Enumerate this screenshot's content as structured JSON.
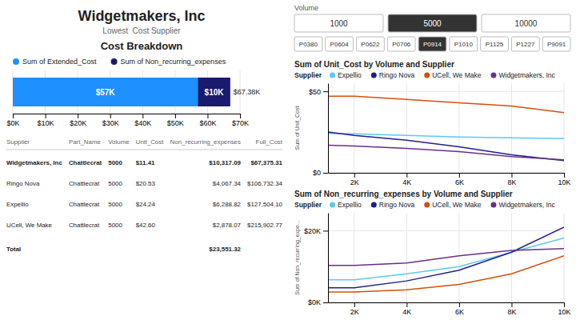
{
  "title": "Widgetmakers, Inc",
  "subtitle": "Lowest  Cost Supplier",
  "controls": [
    {
      "label": "Volume",
      "options": [
        "1000",
        "5000",
        "10000"
      ],
      "selected": "5000"
    },
    {
      "options": [
        "P0380",
        "P0604",
        "P0622",
        "P0706",
        "P0914",
        "P1010",
        "P1125",
        "P1227",
        "P9091"
      ],
      "selected": "P0914"
    }
  ],
  "chart_data": [
    {
      "type": "bar",
      "title": "Cost Breakdown",
      "orientation": "horizontal",
      "stacked": true,
      "data_labels": true,
      "grid": true,
      "series": [
        {
          "name": "Sum of Extended_Cost",
          "color": "#1E90FF",
          "values": [
            57000
          ],
          "value_labels": [
            "$57K"
          ]
        },
        {
          "name": "Sum of Non_recurring_expenses",
          "color": "#1a1a6e",
          "values": [
            10000
          ],
          "value_labels": [
            "$10K"
          ]
        }
      ],
      "annotations": [
        "$67.38K"
      ],
      "xlim": [
        0,
        70000
      ],
      "xticks": [
        {
          "value": 0,
          "label": "$0K"
        },
        {
          "value": 10000,
          "label": "$10K"
        },
        {
          "value": 20000,
          "label": "$20K"
        },
        {
          "value": 30000,
          "label": "$30K"
        },
        {
          "value": 40000,
          "label": "$40K"
        },
        {
          "value": 50000,
          "label": "$50K"
        },
        {
          "value": 60000,
          "label": "$60K"
        },
        {
          "value": 70000,
          "label": "$70K"
        }
      ]
    },
    {
      "type": "table",
      "columns": [
        "Supplier",
        "Part_Name",
        "Volume",
        "Unit_Cost",
        "Non_recurring_expenses",
        "Full_Cost"
      ],
      "rows": [
        [
          "Widgetmakers, Inc",
          "Chattlecrat",
          "5000",
          "$11.41",
          "$10,317.09",
          "$67,375.31"
        ],
        [
          "Ringo Nova",
          "Chattlecrat",
          "5000",
          "$20.53",
          "$4,067.34",
          "$106,732.34"
        ],
        [
          "Expellio",
          "Chattlecrat",
          "5000",
          "$24.24",
          "$6,288.82",
          "$127,504.10"
        ],
        [
          "UCell, We Make",
          "Chattlecrat",
          "5000",
          "$42.60",
          "$2,878.07",
          "$215,902.77"
        ]
      ],
      "total_label": "Total",
      "total_value": "$23,551.32"
    },
    {
      "type": "line",
      "title": "Sum of Unit_Cost by Volume and Supplier",
      "y_label": "Sum of Unit_Cost",
      "legend": "top",
      "legend_title": "Supplier",
      "grid": true,
      "x": [
        1000,
        2000,
        4000,
        6000,
        8000,
        10000
      ],
      "xlim": [
        1000,
        10000
      ],
      "xticks": [
        {
          "value": 2000,
          "label": "2K"
        },
        {
          "value": 4000,
          "label": "4K"
        },
        {
          "value": 6000,
          "label": "6K"
        },
        {
          "value": 8000,
          "label": "8K"
        },
        {
          "value": 10000,
          "label": "10K"
        }
      ],
      "ylim": [
        0,
        55
      ],
      "yticks": [
        {
          "value": 0,
          "label": "$0"
        },
        {
          "value": 50,
          "label": "$50"
        }
      ],
      "series": [
        {
          "name": "Expellio",
          "color": "#5bc8f5",
          "values": [
            24.24,
            24.0,
            23.0,
            22.0,
            21.5,
            21.0
          ]
        },
        {
          "name": "Ringo Nova",
          "color": "#1f1f8c",
          "values": [
            25.0,
            23.0,
            20.0,
            16.0,
            11.0,
            7.5
          ]
        },
        {
          "name": "UCell, We Make",
          "color": "#d4500a",
          "values": [
            47.0,
            47.0,
            45.0,
            43.0,
            41.0,
            37.0
          ]
        },
        {
          "name": "Widgetmakers, Inc",
          "color": "#6b2d8b",
          "values": [
            17.0,
            16.5,
            15.0,
            13.0,
            10.0,
            8.0
          ]
        }
      ]
    },
    {
      "type": "line",
      "title": "Sum of Non_recurring_expenses by Volume and Supplier",
      "y_label": "Sum of Non_recurring_expe...",
      "legend": "top",
      "legend_title": "Supplier",
      "grid": true,
      "x": [
        1000,
        2000,
        4000,
        6000,
        8000,
        10000
      ],
      "xlim": [
        1000,
        10000
      ],
      "xticks": [
        {
          "value": 2000,
          "label": "2K"
        },
        {
          "value": 4000,
          "label": "4K"
        },
        {
          "value": 6000,
          "label": "6K"
        },
        {
          "value": 8000,
          "label": "8K"
        },
        {
          "value": 10000,
          "label": "10K"
        }
      ],
      "ylim": [
        0,
        25000
      ],
      "yticks": [
        {
          "value": 0,
          "label": "$0K"
        },
        {
          "value": 20000,
          "label": "$20K"
        }
      ],
      "series": [
        {
          "name": "Expellio",
          "color": "#5bc8f5",
          "values": [
            6288,
            6288,
            8000,
            10000,
            14000,
            18000
          ]
        },
        {
          "name": "Ringo Nova",
          "color": "#1f1f8c",
          "values": [
            4067,
            4067,
            6000,
            9000,
            14000,
            21000
          ]
        },
        {
          "name": "UCell, We Make",
          "color": "#d4500a",
          "values": [
            2878,
            2878,
            3500,
            5000,
            8000,
            13000
          ]
        },
        {
          "name": "Widgetmakers, Inc",
          "color": "#6b2d8b",
          "values": [
            10317,
            10317,
            11000,
            13000,
            14500,
            15000
          ]
        }
      ]
    }
  ]
}
